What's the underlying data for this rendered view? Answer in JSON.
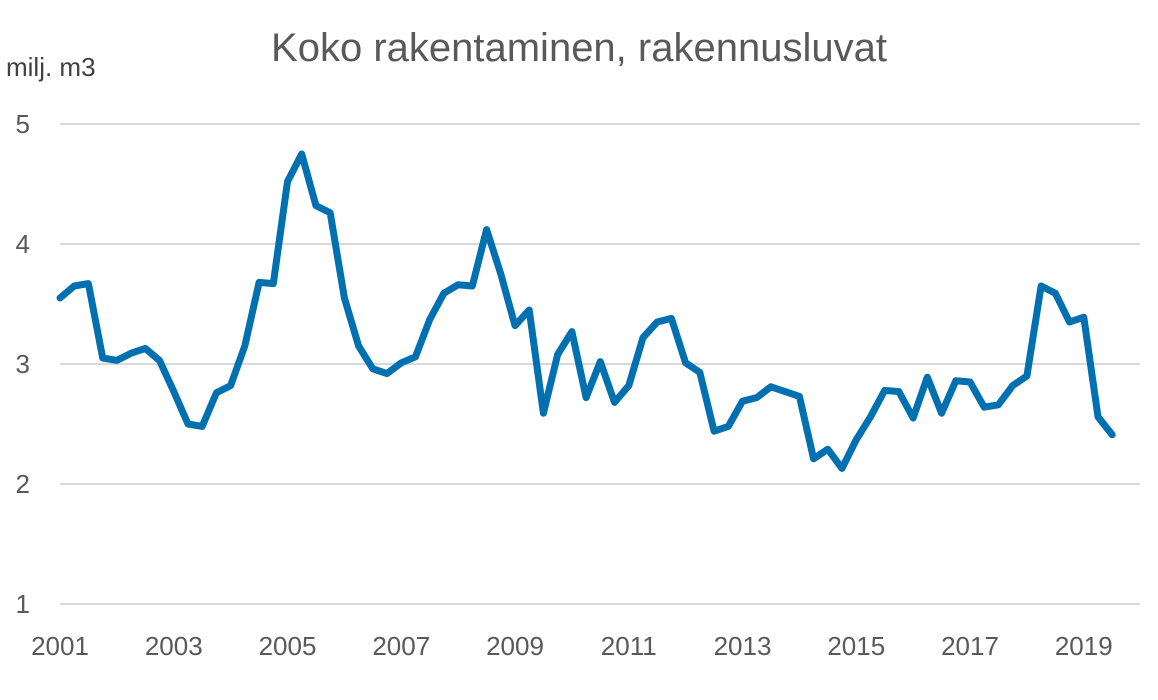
{
  "chart_data": {
    "type": "line",
    "title": "Koko rakentaminen, rakennusluvat",
    "ylabel": "milj. m3",
    "xlabel": "",
    "ylim": [
      1,
      5
    ],
    "yticks": [
      1,
      2,
      3,
      4,
      5
    ],
    "xlim": [
      2001,
      2019.75
    ],
    "xticks": [
      2001,
      2003,
      2005,
      2007,
      2009,
      2011,
      2013,
      2015,
      2017,
      2019
    ],
    "grid": true,
    "legend": "none",
    "colors": {
      "line": "#0070B0",
      "grid": "#D9D9D9",
      "text": "#595959"
    },
    "series": [
      {
        "x": [
          2001.0,
          2001.25,
          2001.5,
          2001.75,
          2002.0,
          2002.25,
          2002.5,
          2002.75,
          2003.0,
          2003.25,
          2003.5,
          2003.75,
          2004.0,
          2004.25,
          2004.5,
          2004.75,
          2005.0,
          2005.25,
          2005.5,
          2005.75,
          2006.0,
          2006.25,
          2006.5,
          2006.75,
          2007.0,
          2007.25,
          2007.5,
          2007.75,
          2008.0,
          2008.25,
          2008.5,
          2008.75,
          2009.0,
          2009.25,
          2009.5,
          2009.75,
          2010.0,
          2010.25,
          2010.5,
          2010.75,
          2011.0,
          2011.25,
          2011.5,
          2011.75,
          2012.0,
          2012.25,
          2012.5,
          2012.75,
          2013.0,
          2013.25,
          2013.5,
          2013.75,
          2014.0,
          2014.25,
          2014.5,
          2014.75,
          2015.0,
          2015.25,
          2015.5,
          2015.75,
          2016.0,
          2016.25,
          2016.5,
          2016.75,
          2017.0,
          2017.25,
          2017.5,
          2017.75,
          2018.0,
          2018.25,
          2018.5,
          2018.75,
          2019.0,
          2019.25,
          2019.5
        ],
        "y": [
          3.55,
          3.65,
          3.67,
          3.05,
          3.03,
          3.09,
          3.13,
          3.03,
          2.77,
          2.5,
          2.48,
          2.76,
          2.82,
          3.15,
          3.68,
          3.67,
          4.52,
          4.75,
          4.32,
          4.26,
          3.55,
          3.15,
          2.96,
          2.92,
          3.01,
          3.06,
          3.37,
          3.59,
          3.66,
          3.65,
          4.12,
          3.75,
          3.32,
          3.45,
          2.59,
          3.08,
          3.27,
          2.72,
          3.02,
          2.68,
          2.82,
          3.22,
          3.35,
          3.38,
          3.01,
          2.93,
          2.44,
          2.48,
          2.69,
          2.72,
          2.81,
          2.77,
          2.73,
          2.21,
          2.29,
          2.13,
          2.37,
          2.56,
          2.78,
          2.77,
          2.55,
          2.89,
          2.59,
          2.86,
          2.85,
          2.64,
          2.66,
          2.82,
          2.9,
          3.65,
          3.59,
          3.35,
          3.39,
          2.56,
          2.41
        ]
      }
    ]
  }
}
